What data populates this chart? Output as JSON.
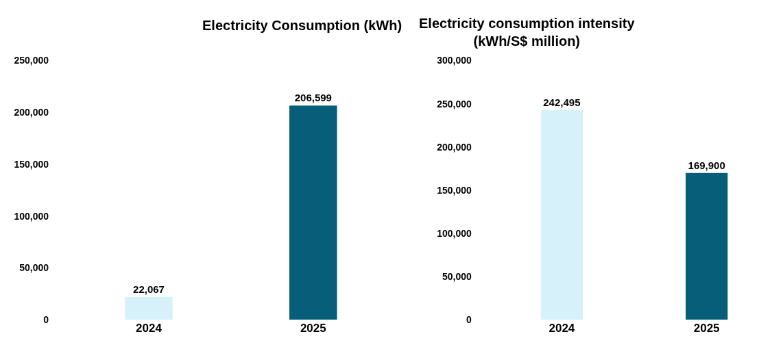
{
  "chart_data": [
    {
      "type": "bar",
      "title": "Electricity Consumption (kWh)",
      "categories": [
        "2024",
        "2025"
      ],
      "values": [
        22067,
        206599
      ],
      "value_labels": [
        "22,067",
        "206,599"
      ],
      "colors": [
        "#d6f1fa",
        "#065e78"
      ],
      "ylim": [
        0,
        250000
      ],
      "yticks": [
        {
          "value": 0,
          "label": "0"
        },
        {
          "value": 50000,
          "label": "50,000"
        },
        {
          "value": 100000,
          "label": "100,000"
        },
        {
          "value": 150000,
          "label": "150,000"
        },
        {
          "value": 200000,
          "label": "200,000"
        },
        {
          "value": 250000,
          "label": "250,000"
        }
      ]
    },
    {
      "type": "bar",
      "title": "Electricity consumption intensity\n(kWh/S$ million)",
      "categories": [
        "2024",
        "2025"
      ],
      "values": [
        242495,
        169900
      ],
      "value_labels": [
        "242,495",
        "169,900"
      ],
      "colors": [
        "#d6f1fa",
        "#065e78"
      ],
      "ylim": [
        0,
        300000
      ],
      "yticks": [
        {
          "value": 0,
          "label": "0"
        },
        {
          "value": 50000,
          "label": "50,000"
        },
        {
          "value": 100000,
          "label": "100,000"
        },
        {
          "value": 150000,
          "label": "150,000"
        },
        {
          "value": 200000,
          "label": "200,000"
        },
        {
          "value": 250000,
          "label": "250,000"
        },
        {
          "value": 300000,
          "label": "300,000"
        }
      ]
    }
  ]
}
